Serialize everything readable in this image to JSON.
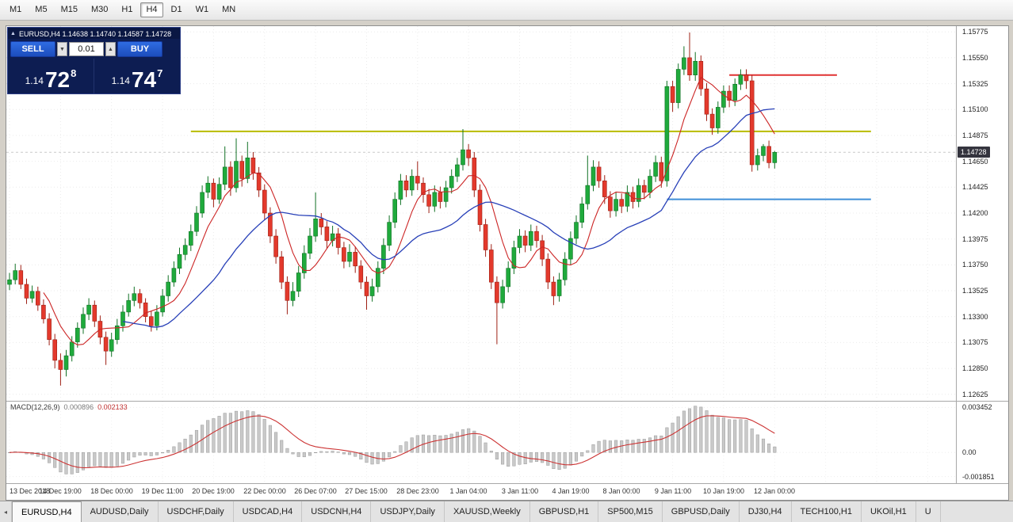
{
  "toolbar": {
    "timeframes": [
      "M1",
      "M5",
      "M15",
      "M30",
      "H1",
      "H4",
      "D1",
      "W1",
      "MN"
    ],
    "selected": "H4"
  },
  "trade_panel": {
    "collapse_icon": "▲",
    "title": "EURUSD,H4 1.14638 1.14740 1.14587 1.14728",
    "sell_label": "SELL",
    "buy_label": "BUY",
    "volume": "0.01",
    "volume_down_icon": "▼",
    "volume_up_icon": "▲",
    "sell_price_prefix": "1.14",
    "sell_price_big": "72",
    "sell_price_sup": "8",
    "buy_price_prefix": "1.14",
    "buy_price_big": "74",
    "buy_price_sup": "7"
  },
  "chart_data": {
    "type": "candlestick",
    "symbol": "EURUSD",
    "timeframe": "H4",
    "ohlc": {
      "open": "1.14638",
      "high": "1.14740",
      "low": "1.14587",
      "close": "1.14728"
    },
    "price_max": 1.15825,
    "price_min": 1.12575,
    "tick_every": 9,
    "current_price": 1.14728,
    "current_price_label": "1.14728",
    "price_axis": [
      "1.15775",
      "1.15550",
      "1.15325",
      "1.15100",
      "1.14875",
      "1.14650",
      "1.14425",
      "1.14200",
      "1.13975",
      "1.13750",
      "1.13525",
      "1.13300",
      "1.13075",
      "1.12850",
      "1.12625"
    ],
    "time_labels": [
      "13 Dec 2018",
      "14 Dec 19:00",
      "18 Dec 00:00",
      "19 Dec 11:00",
      "20 Dec 19:00",
      "22 Dec 00:00",
      "26 Dec 07:00",
      "27 Dec 15:00",
      "28 Dec 23:00",
      "1 Jan 04:00",
      "3 Jan 11:00",
      "4 Jan 19:00",
      "8 Jan 00:00",
      "9 Jan 11:00",
      "10 Jan 19:00",
      "12 Jan 00:00"
    ],
    "hlines": [
      {
        "name": "resistance-line-red",
        "price": 1.154,
        "color": "#e03232",
        "from_bar": 127,
        "to_bar": 146,
        "width": 2
      },
      {
        "name": "resistance-line-yellow",
        "price": 1.1491,
        "color": "#b8bc00",
        "from_bar": 32,
        "to_bar": 152,
        "width": 2
      },
      {
        "name": "support-line-blue",
        "price": 1.1432,
        "color": "#3f8fd8",
        "from_bar": 116,
        "to_bar": 152,
        "width": 2
      }
    ],
    "moving_averages": [
      {
        "type": "sma",
        "period": 7,
        "color": "#cc2525",
        "width": 1.1
      },
      {
        "type": "sma",
        "period": 21,
        "color": "#2840b8",
        "width": 1.3
      }
    ],
    "colors": {
      "up": "#1faa3c",
      "up_border": "#117225",
      "down": "#e3392c",
      "down_border": "#9e2015",
      "grid": "#ebebeb",
      "bid_line": "#c9c9c9"
    },
    "candles": [
      [
        1.1358,
        1.1368,
        1.1353,
        1.1362
      ],
      [
        1.1362,
        1.1376,
        1.1358,
        1.137
      ],
      [
        1.137,
        1.1375,
        1.1354,
        1.1358
      ],
      [
        1.1358,
        1.1363,
        1.1341,
        1.1346
      ],
      [
        1.1346,
        1.1357,
        1.1342,
        1.1352
      ],
      [
        1.1352,
        1.1356,
        1.1335,
        1.134
      ],
      [
        1.134,
        1.1345,
        1.1324,
        1.1328
      ],
      [
        1.1328,
        1.1333,
        1.1305,
        1.131
      ],
      [
        1.131,
        1.1315,
        1.1285,
        1.1292
      ],
      [
        1.1292,
        1.1298,
        1.127,
        1.1284
      ],
      [
        1.1284,
        1.1301,
        1.1278,
        1.1296
      ],
      [
        1.1296,
        1.1313,
        1.1291,
        1.1308
      ],
      [
        1.1308,
        1.1325,
        1.1303,
        1.132
      ],
      [
        1.132,
        1.1338,
        1.1315,
        1.1332
      ],
      [
        1.1332,
        1.1346,
        1.1327,
        1.134
      ],
      [
        1.134,
        1.1344,
        1.1321,
        1.1326
      ],
      [
        1.1326,
        1.1331,
        1.1306,
        1.1312
      ],
      [
        1.1312,
        1.1317,
        1.1288,
        1.13
      ],
      [
        1.13,
        1.1316,
        1.1295,
        1.131
      ],
      [
        1.131,
        1.1328,
        1.1306,
        1.1322
      ],
      [
        1.1322,
        1.134,
        1.1317,
        1.1334
      ],
      [
        1.1334,
        1.135,
        1.133,
        1.1344
      ],
      [
        1.1344,
        1.1356,
        1.1339,
        1.135
      ],
      [
        1.135,
        1.1354,
        1.1337,
        1.1342
      ],
      [
        1.1342,
        1.1346,
        1.1325,
        1.133
      ],
      [
        1.133,
        1.1335,
        1.1317,
        1.1322
      ],
      [
        1.1322,
        1.134,
        1.1318,
        1.1334
      ],
      [
        1.1334,
        1.1354,
        1.133,
        1.1348
      ],
      [
        1.1348,
        1.1366,
        1.1343,
        1.136
      ],
      [
        1.136,
        1.1378,
        1.1356,
        1.1372
      ],
      [
        1.1372,
        1.139,
        1.1367,
        1.1384
      ],
      [
        1.1384,
        1.1398,
        1.1379,
        1.1392
      ],
      [
        1.1392,
        1.141,
        1.1387,
        1.1404
      ],
      [
        1.1404,
        1.1426,
        1.14,
        1.142
      ],
      [
        1.142,
        1.1444,
        1.1416,
        1.1438
      ],
      [
        1.1438,
        1.1452,
        1.1433,
        1.1446
      ],
      [
        1.1446,
        1.145,
        1.1425,
        1.1432
      ],
      [
        1.1432,
        1.1451,
        1.1428,
        1.1445
      ],
      [
        1.1445,
        1.1478,
        1.144,
        1.146
      ],
      [
        1.146,
        1.1465,
        1.1435,
        1.1442
      ],
      [
        1.1442,
        1.1485,
        1.1438,
        1.1465
      ],
      [
        1.1465,
        1.147,
        1.1443,
        1.145
      ],
      [
        1.145,
        1.1482,
        1.1446,
        1.1468
      ],
      [
        1.1468,
        1.1473,
        1.1449,
        1.1455
      ],
      [
        1.1455,
        1.146,
        1.1434,
        1.144
      ],
      [
        1.144,
        1.1445,
        1.1414,
        1.142
      ],
      [
        1.142,
        1.1425,
        1.1394,
        1.14
      ],
      [
        1.14,
        1.1406,
        1.1376,
        1.1382
      ],
      [
        1.1382,
        1.1387,
        1.1354,
        1.136
      ],
      [
        1.136,
        1.1365,
        1.1332,
        1.1344
      ],
      [
        1.1344,
        1.136,
        1.1339,
        1.1352
      ],
      [
        1.1352,
        1.1374,
        1.1347,
        1.1368
      ],
      [
        1.1368,
        1.1392,
        1.1363,
        1.1385
      ],
      [
        1.1385,
        1.1407,
        1.138,
        1.14
      ],
      [
        1.14,
        1.1438,
        1.1395,
        1.1415
      ],
      [
        1.1415,
        1.142,
        1.1401,
        1.1408
      ],
      [
        1.1408,
        1.1413,
        1.1389,
        1.1396
      ],
      [
        1.1396,
        1.1409,
        1.1391,
        1.1402
      ],
      [
        1.1402,
        1.1407,
        1.1384,
        1.139
      ],
      [
        1.139,
        1.1395,
        1.1372,
        1.1378
      ],
      [
        1.1378,
        1.1393,
        1.1373,
        1.1386
      ],
      [
        1.1386,
        1.1391,
        1.1368,
        1.1374
      ],
      [
        1.1374,
        1.1379,
        1.1354,
        1.136
      ],
      [
        1.136,
        1.1365,
        1.1336,
        1.1348
      ],
      [
        1.1348,
        1.1363,
        1.1343,
        1.1356
      ],
      [
        1.1356,
        1.1378,
        1.1351,
        1.1372
      ],
      [
        1.1372,
        1.1398,
        1.1367,
        1.1392
      ],
      [
        1.1392,
        1.1418,
        1.1387,
        1.1412
      ],
      [
        1.1412,
        1.1438,
        1.1407,
        1.1432
      ],
      [
        1.1432,
        1.1454,
        1.1427,
        1.1448
      ],
      [
        1.1448,
        1.1453,
        1.1434,
        1.144
      ],
      [
        1.144,
        1.1458,
        1.1435,
        1.1452
      ],
      [
        1.1452,
        1.1465,
        1.144,
        1.1446
      ],
      [
        1.1446,
        1.1451,
        1.1429,
        1.1436
      ],
      [
        1.1436,
        1.1441,
        1.142,
        1.1426
      ],
      [
        1.1426,
        1.1444,
        1.1421,
        1.1438
      ],
      [
        1.1438,
        1.1443,
        1.1424,
        1.143
      ],
      [
        1.143,
        1.1448,
        1.1425,
        1.1442
      ],
      [
        1.1442,
        1.1458,
        1.1437,
        1.1452
      ],
      [
        1.1452,
        1.1468,
        1.1447,
        1.1462
      ],
      [
        1.1462,
        1.1493,
        1.1457,
        1.1475
      ],
      [
        1.1475,
        1.148,
        1.1461,
        1.1468
      ],
      [
        1.1468,
        1.1473,
        1.1434,
        1.144
      ],
      [
        1.144,
        1.1445,
        1.1404,
        1.141
      ],
      [
        1.141,
        1.1415,
        1.1382,
        1.1388
      ],
      [
        1.1388,
        1.1393,
        1.1354,
        1.136
      ],
      [
        1.136,
        1.1365,
        1.1306,
        1.1342
      ],
      [
        1.1342,
        1.1362,
        1.1337,
        1.1356
      ],
      [
        1.1356,
        1.1378,
        1.1351,
        1.1372
      ],
      [
        1.1372,
        1.1396,
        1.1367,
        1.139
      ],
      [
        1.139,
        1.1406,
        1.1385,
        1.14
      ],
      [
        1.14,
        1.1405,
        1.1386,
        1.1392
      ],
      [
        1.1392,
        1.141,
        1.1387,
        1.1404
      ],
      [
        1.1404,
        1.1409,
        1.139,
        1.1396
      ],
      [
        1.1396,
        1.1401,
        1.1374,
        1.138
      ],
      [
        1.138,
        1.1385,
        1.1354,
        1.136
      ],
      [
        1.136,
        1.1365,
        1.134,
        1.1348
      ],
      [
        1.1348,
        1.1368,
        1.1343,
        1.1362
      ],
      [
        1.1362,
        1.1386,
        1.1357,
        1.138
      ],
      [
        1.138,
        1.1404,
        1.1375,
        1.1398
      ],
      [
        1.1398,
        1.1418,
        1.1393,
        1.1412
      ],
      [
        1.1412,
        1.1434,
        1.1407,
        1.1428
      ],
      [
        1.1428,
        1.147,
        1.1423,
        1.1444
      ],
      [
        1.1444,
        1.1466,
        1.1439,
        1.146
      ],
      [
        1.146,
        1.1465,
        1.1442,
        1.1448
      ],
      [
        1.1448,
        1.1453,
        1.1428,
        1.1434
      ],
      [
        1.1434,
        1.1439,
        1.1416,
        1.1422
      ],
      [
        1.1422,
        1.1438,
        1.1417,
        1.1432
      ],
      [
        1.1432,
        1.1437,
        1.142,
        1.1426
      ],
      [
        1.1426,
        1.1444,
        1.1421,
        1.1438
      ],
      [
        1.1438,
        1.1443,
        1.1424,
        1.143
      ],
      [
        1.143,
        1.145,
        1.1425,
        1.1444
      ],
      [
        1.1444,
        1.1449,
        1.1432,
        1.1438
      ],
      [
        1.1438,
        1.1458,
        1.1433,
        1.1452
      ],
      [
        1.1452,
        1.147,
        1.1447,
        1.1464
      ],
      [
        1.1464,
        1.1469,
        1.1442,
        1.1448
      ],
      [
        1.1448,
        1.1535,
        1.1443,
        1.153
      ],
      [
        1.153,
        1.1535,
        1.1508,
        1.1516
      ],
      [
        1.1516,
        1.155,
        1.1511,
        1.1545
      ],
      [
        1.1545,
        1.1565,
        1.154,
        1.1555
      ],
      [
        1.1555,
        1.1577,
        1.1535,
        1.154
      ],
      [
        1.154,
        1.156,
        1.1535,
        1.1552
      ],
      [
        1.1552,
        1.1557,
        1.1522,
        1.1528
      ],
      [
        1.1528,
        1.1533,
        1.15,
        1.1506
      ],
      [
        1.1506,
        1.1511,
        1.1488,
        1.1494
      ],
      [
        1.1494,
        1.1517,
        1.1489,
        1.1512
      ],
      [
        1.1512,
        1.1531,
        1.1507,
        1.1526
      ],
      [
        1.1526,
        1.1531,
        1.1512,
        1.1518
      ],
      [
        1.1518,
        1.1537,
        1.1513,
        1.1532
      ],
      [
        1.1532,
        1.1545,
        1.1527,
        1.154
      ],
      [
        1.154,
        1.1545,
        1.1528,
        1.1535
      ],
      [
        1.1535,
        1.154,
        1.1456,
        1.1462
      ],
      [
        1.1462,
        1.1476,
        1.1457,
        1.147
      ],
      [
        1.147,
        1.148,
        1.1465,
        1.1478
      ],
      [
        1.1478,
        1.1483,
        1.1459,
        1.14638
      ],
      [
        1.14638,
        1.1474,
        1.14587,
        1.14728
      ]
    ]
  },
  "macd": {
    "label": "MACD(12,26,9)",
    "value1": "0.000896",
    "value2": "0.002133",
    "axis": [
      "0.003452",
      "0.00",
      "-0.001851"
    ],
    "axis_values": [
      0.003452,
      0,
      -0.001851
    ],
    "scale_max": 0.0039,
    "scale_min": -0.0023,
    "hist_color": "#c9c9c9",
    "hist_border": "#9b9b9b",
    "signal_color": "#cc3333"
  },
  "tabs": [
    "EURUSD,H4",
    "AUDUSD,Daily",
    "USDCHF,Daily",
    "USDCAD,H4",
    "USDCNH,H4",
    "USDJPY,Daily",
    "XAUUSD,Weekly",
    "GBPUSD,H1",
    "SP500,M15",
    "GBPUSD,Daily",
    "DJ30,H4",
    "TECH100,H1",
    "UKOil,H1",
    "U"
  ],
  "active_tab": 0,
  "tab_scroll_left_icon": "◂"
}
